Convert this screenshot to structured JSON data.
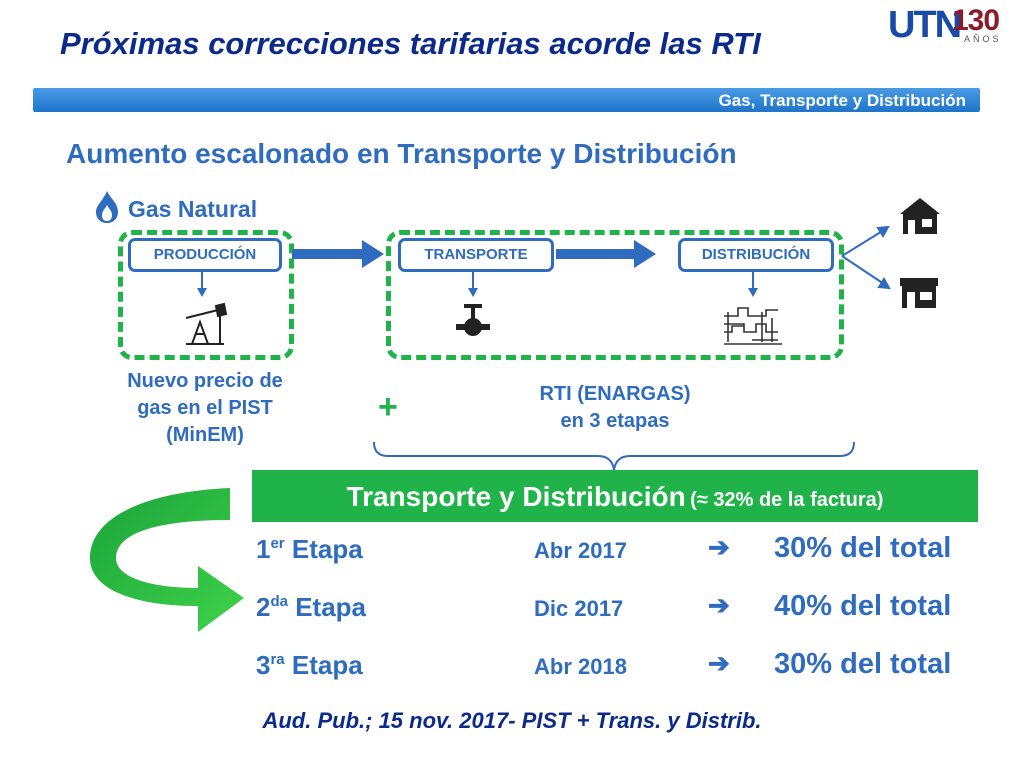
{
  "title": "Próximas correcciones tarifarias acorde las RTI",
  "logo": {
    "mark": "UTN",
    "number": "130",
    "sub": "AÑOS"
  },
  "banner": {
    "label": "Gas, Transporte y Distribución"
  },
  "heading": "Aumento escalonado en Transporte y Distribución",
  "diagram": {
    "gas_label": "Gas Natural",
    "stages": {
      "production": "PRODUCCIÓN",
      "transport": "TRANSPORTE",
      "distribution": "DISTRIBUCIÓN"
    },
    "icons": [
      "flame-icon",
      "oil-pump-icon",
      "valve-icon",
      "pipes-icon",
      "house-icon",
      "shop-icon"
    ],
    "new_price": {
      "line1": "Nuevo precio de",
      "line2": "gas en el PIST",
      "line3": "(MinEM)"
    },
    "plus": "+",
    "rti": {
      "line1": "RTI (ENARGAS)",
      "line2": "en 3 etapas"
    }
  },
  "table": {
    "title_main": "Transporte y Distribución",
    "title_sub": "(≈ 32% de la factura)",
    "arrow": "➔",
    "rows": [
      {
        "num": "1",
        "sup": "er",
        "word": "Etapa",
        "date": "Abr 2017",
        "pct": "30% del total"
      },
      {
        "num": "2",
        "sup": "da",
        "word": "Etapa",
        "date": "Dic 2017",
        "pct": "40% del total"
      },
      {
        "num": "3",
        "sup": "ra",
        "word": "Etapa",
        "date": "Abr 2018",
        "pct": "30% del total"
      }
    ]
  },
  "footer": "Aud. Pub.; 15 nov. 2017- PIST + Trans. y Distrib.",
  "colors": {
    "navy": "#0b2a8a",
    "blue": "#2f6cbf",
    "green": "#1fb34a",
    "banner": "#1f74c9",
    "logo_red": "#8a1c2a"
  }
}
